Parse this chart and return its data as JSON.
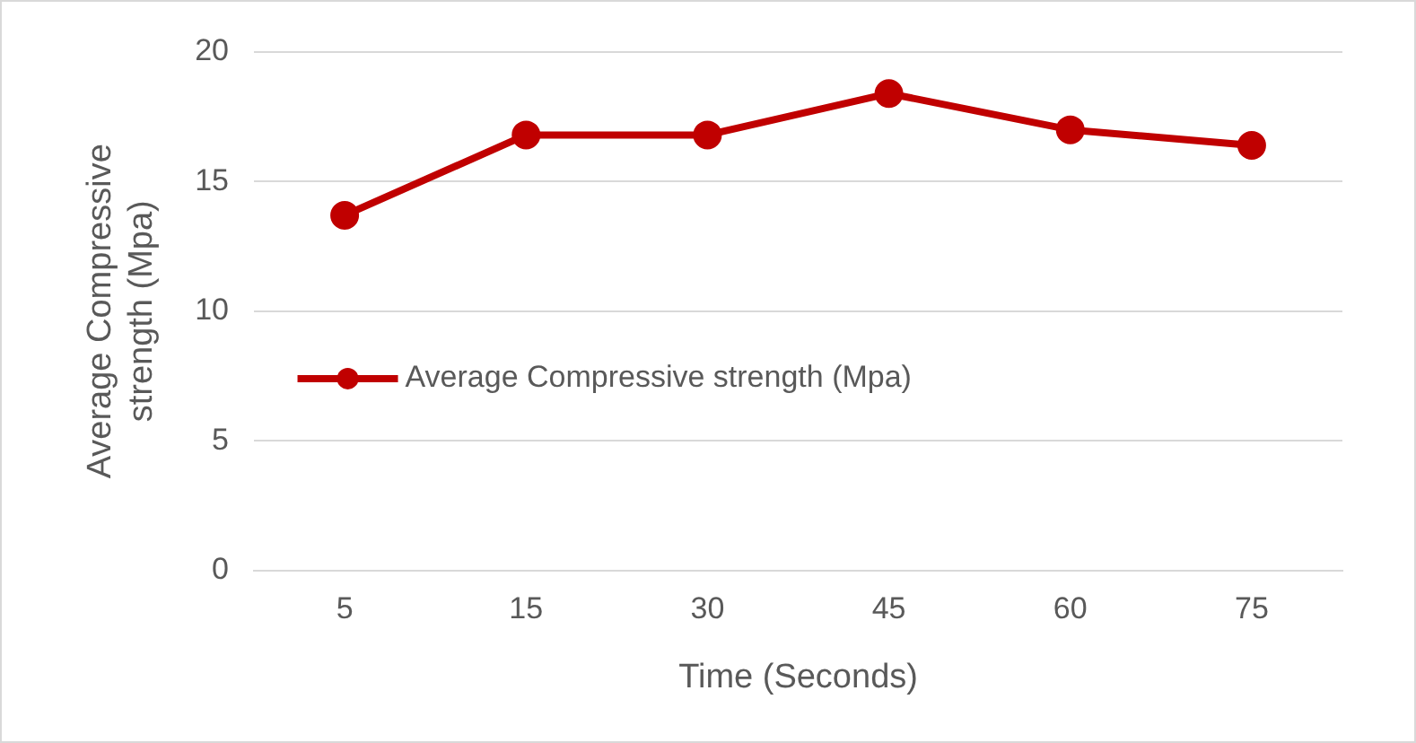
{
  "chart_data": {
    "type": "line",
    "categories": [
      "5",
      "15",
      "30",
      "45",
      "60",
      "75"
    ],
    "series": [
      {
        "name": "Average Compressive strength (Mpa)",
        "color": "#c00000",
        "values": [
          13.7,
          16.8,
          16.8,
          18.4,
          17.0,
          16.4
        ]
      }
    ],
    "xlabel": "Time (Seconds)",
    "ylabel": "Average Compressive strength (Mpa)",
    "ylim": [
      0,
      20
    ],
    "yticks": [
      0,
      5,
      10,
      15,
      20
    ],
    "grid": "y",
    "legend": "left",
    "marker": "circle",
    "line_style": "solid"
  }
}
